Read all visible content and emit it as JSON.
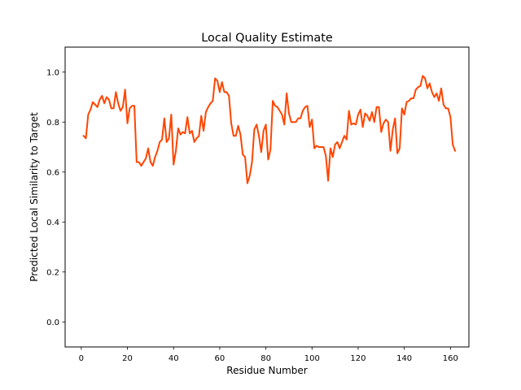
{
  "chart_data": {
    "type": "line",
    "title": "Local Quality Estimate",
    "xlabel": "Residue Number",
    "ylabel": "Predicted Local Similarity to Target",
    "xlim": [
      -7,
      168
    ],
    "ylim": [
      -0.1,
      1.1
    ],
    "xticks": [
      0,
      20,
      40,
      60,
      80,
      100,
      120,
      140,
      160
    ],
    "yticks": [
      0.0,
      0.2,
      0.4,
      0.6,
      0.8,
      1.0
    ],
    "xtick_labels": [
      "0",
      "20",
      "40",
      "60",
      "80",
      "100",
      "120",
      "140",
      "160"
    ],
    "ytick_labels": [
      "0.0",
      "0.2",
      "0.4",
      "0.6",
      "0.8",
      "1.0"
    ],
    "grid": false,
    "series": [
      {
        "color": "#ff4500",
        "x": [
          1,
          2,
          3,
          4,
          5,
          6,
          7,
          8,
          9,
          10,
          11,
          12,
          13,
          14,
          15,
          16,
          17,
          18,
          19,
          20,
          21,
          22,
          23,
          24,
          25,
          26,
          27,
          28,
          29,
          30,
          31,
          32,
          33,
          34,
          35,
          36,
          37,
          38,
          39,
          40,
          41,
          42,
          43,
          44,
          45,
          46,
          47,
          48,
          49,
          50,
          51,
          52,
          53,
          54,
          55,
          56,
          57,
          58,
          59,
          60,
          61,
          62,
          63,
          64,
          65,
          66,
          67,
          68,
          69,
          70,
          71,
          72,
          73,
          74,
          75,
          76,
          77,
          78,
          79,
          80,
          81,
          82,
          83,
          84,
          85,
          86,
          87,
          88,
          89,
          90,
          91,
          92,
          93,
          94,
          95,
          96,
          97,
          98,
          99,
          100,
          101,
          102,
          103,
          104,
          105,
          106,
          107,
          108,
          109,
          110,
          111,
          112,
          113,
          114,
          115,
          116,
          117,
          118,
          119,
          120,
          121,
          122,
          123,
          124,
          125,
          126,
          127,
          128,
          129,
          130,
          131,
          132,
          133,
          134,
          135,
          136,
          137,
          138,
          139,
          140,
          141,
          142,
          143,
          144,
          145,
          146,
          147,
          148,
          149,
          150,
          151,
          152,
          153,
          154,
          155,
          156,
          157,
          158,
          159,
          160,
          161,
          162
        ],
        "y": [
          0.745,
          0.735,
          0.83,
          0.85,
          0.88,
          0.87,
          0.86,
          0.89,
          0.905,
          0.875,
          0.9,
          0.89,
          0.855,
          0.855,
          0.92,
          0.875,
          0.845,
          0.86,
          0.93,
          0.795,
          0.855,
          0.865,
          0.865,
          0.64,
          0.64,
          0.625,
          0.64,
          0.655,
          0.695,
          0.64,
          0.625,
          0.66,
          0.685,
          0.72,
          0.73,
          0.815,
          0.72,
          0.735,
          0.83,
          0.63,
          0.685,
          0.775,
          0.75,
          0.76,
          0.755,
          0.82,
          0.755,
          0.765,
          0.72,
          0.735,
          0.745,
          0.825,
          0.765,
          0.84,
          0.86,
          0.875,
          0.885,
          0.975,
          0.965,
          0.92,
          0.96,
          0.92,
          0.92,
          0.905,
          0.795,
          0.745,
          0.745,
          0.785,
          0.75,
          0.67,
          0.66,
          0.555,
          0.585,
          0.64,
          0.77,
          0.79,
          0.745,
          0.68,
          0.765,
          0.79,
          0.65,
          0.69,
          0.885,
          0.865,
          0.86,
          0.845,
          0.83,
          0.79,
          0.915,
          0.835,
          0.8,
          0.8,
          0.8,
          0.815,
          0.815,
          0.845,
          0.86,
          0.865,
          0.78,
          0.81,
          0.695,
          0.705,
          0.7,
          0.7,
          0.7,
          0.665,
          0.565,
          0.695,
          0.66,
          0.71,
          0.72,
          0.695,
          0.72,
          0.745,
          0.73,
          0.845,
          0.79,
          0.795,
          0.79,
          0.83,
          0.85,
          0.78,
          0.835,
          0.825,
          0.805,
          0.84,
          0.8,
          0.86,
          0.86,
          0.76,
          0.795,
          0.81,
          0.8,
          0.685,
          0.77,
          0.815,
          0.675,
          0.695,
          0.855,
          0.83,
          0.88,
          0.885,
          0.895,
          0.895,
          0.93,
          0.94,
          0.945,
          0.985,
          0.975,
          0.935,
          0.955,
          0.92,
          0.9,
          0.915,
          0.885,
          0.935,
          0.87,
          0.855,
          0.855,
          0.82,
          0.71,
          0.685
        ]
      }
    ]
  }
}
